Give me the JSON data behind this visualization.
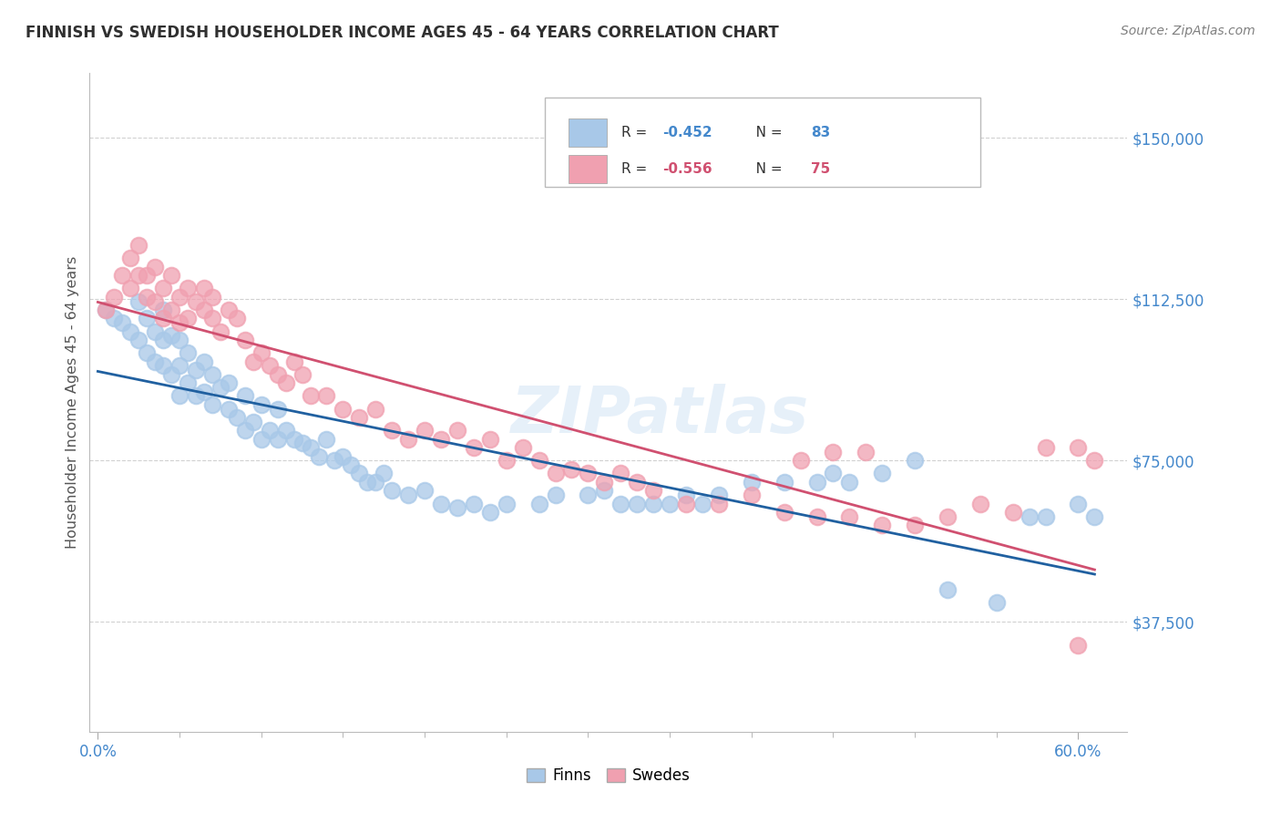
{
  "title": "FINNISH VS SWEDISH HOUSEHOLDER INCOME AGES 45 - 64 YEARS CORRELATION CHART",
  "source": "Source: ZipAtlas.com",
  "ylabel": "Householder Income Ages 45 - 64 years",
  "ytick_labels": [
    "$37,500",
    "$75,000",
    "$112,500",
    "$150,000"
  ],
  "ytick_values": [
    37500,
    75000,
    112500,
    150000
  ],
  "ylim": [
    12000,
    165000
  ],
  "xlim": [
    -0.005,
    0.63
  ],
  "watermark": "ZIPatlas",
  "legend_label1": "Finns",
  "legend_label2": "Swedes",
  "finns_color": "#A8C8E8",
  "swedes_color": "#F0A0B0",
  "finns_line_color": "#2060A0",
  "swedes_line_color": "#D05070",
  "background_color": "#FFFFFF",
  "grid_color": "#CCCCCC",
  "title_color": "#303030",
  "source_color": "#808080",
  "axis_label_color": "#4488CC",
  "finns_x": [
    0.005,
    0.01,
    0.015,
    0.02,
    0.025,
    0.025,
    0.03,
    0.03,
    0.035,
    0.035,
    0.04,
    0.04,
    0.04,
    0.045,
    0.045,
    0.05,
    0.05,
    0.05,
    0.055,
    0.055,
    0.06,
    0.06,
    0.065,
    0.065,
    0.07,
    0.07,
    0.075,
    0.08,
    0.08,
    0.085,
    0.09,
    0.09,
    0.095,
    0.1,
    0.1,
    0.105,
    0.11,
    0.11,
    0.115,
    0.12,
    0.125,
    0.13,
    0.135,
    0.14,
    0.145,
    0.15,
    0.155,
    0.16,
    0.165,
    0.17,
    0.175,
    0.18,
    0.19,
    0.2,
    0.21,
    0.22,
    0.23,
    0.24,
    0.25,
    0.27,
    0.28,
    0.3,
    0.31,
    0.32,
    0.33,
    0.34,
    0.35,
    0.36,
    0.37,
    0.38,
    0.4,
    0.42,
    0.44,
    0.45,
    0.46,
    0.48,
    0.5,
    0.52,
    0.55,
    0.57,
    0.58,
    0.6,
    0.61
  ],
  "finns_y": [
    110000,
    108000,
    107000,
    105000,
    103000,
    112000,
    100000,
    108000,
    98000,
    105000,
    103000,
    97000,
    110000,
    95000,
    104000,
    90000,
    97000,
    103000,
    93000,
    100000,
    90000,
    96000,
    91000,
    98000,
    88000,
    95000,
    92000,
    87000,
    93000,
    85000,
    82000,
    90000,
    84000,
    80000,
    88000,
    82000,
    80000,
    87000,
    82000,
    80000,
    79000,
    78000,
    76000,
    80000,
    75000,
    76000,
    74000,
    72000,
    70000,
    70000,
    72000,
    68000,
    67000,
    68000,
    65000,
    64000,
    65000,
    63000,
    65000,
    65000,
    67000,
    67000,
    68000,
    65000,
    65000,
    65000,
    65000,
    67000,
    65000,
    67000,
    70000,
    70000,
    70000,
    72000,
    70000,
    72000,
    75000,
    45000,
    42000,
    62000,
    62000,
    65000,
    62000
  ],
  "swedes_x": [
    0.005,
    0.01,
    0.015,
    0.02,
    0.02,
    0.025,
    0.025,
    0.03,
    0.03,
    0.035,
    0.035,
    0.04,
    0.04,
    0.045,
    0.045,
    0.05,
    0.05,
    0.055,
    0.055,
    0.06,
    0.065,
    0.065,
    0.07,
    0.07,
    0.075,
    0.08,
    0.085,
    0.09,
    0.095,
    0.1,
    0.105,
    0.11,
    0.115,
    0.12,
    0.125,
    0.13,
    0.14,
    0.15,
    0.16,
    0.17,
    0.18,
    0.19,
    0.2,
    0.21,
    0.22,
    0.23,
    0.24,
    0.25,
    0.26,
    0.27,
    0.28,
    0.29,
    0.3,
    0.31,
    0.32,
    0.33,
    0.34,
    0.36,
    0.38,
    0.4,
    0.42,
    0.44,
    0.46,
    0.48,
    0.5,
    0.52,
    0.54,
    0.56,
    0.58,
    0.6,
    0.43,
    0.45,
    0.47,
    0.61,
    0.6
  ],
  "swedes_y": [
    110000,
    113000,
    118000,
    122000,
    115000,
    125000,
    118000,
    118000,
    113000,
    120000,
    112000,
    115000,
    108000,
    118000,
    110000,
    113000,
    107000,
    115000,
    108000,
    112000,
    110000,
    115000,
    108000,
    113000,
    105000,
    110000,
    108000,
    103000,
    98000,
    100000,
    97000,
    95000,
    93000,
    98000,
    95000,
    90000,
    90000,
    87000,
    85000,
    87000,
    82000,
    80000,
    82000,
    80000,
    82000,
    78000,
    80000,
    75000,
    78000,
    75000,
    72000,
    73000,
    72000,
    70000,
    72000,
    70000,
    68000,
    65000,
    65000,
    67000,
    63000,
    62000,
    62000,
    60000,
    60000,
    62000,
    65000,
    63000,
    78000,
    78000,
    75000,
    77000,
    77000,
    75000,
    32000
  ]
}
